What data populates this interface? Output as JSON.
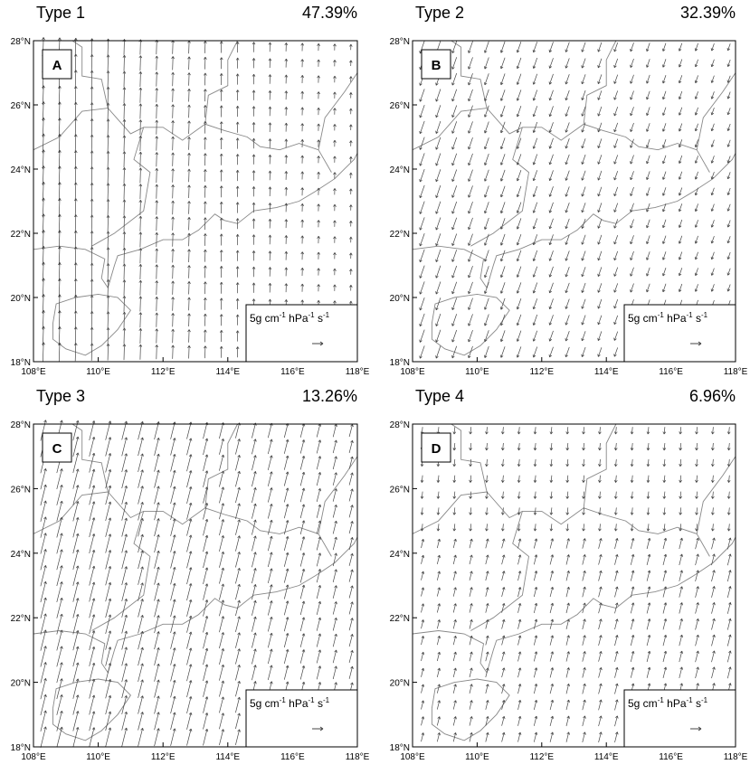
{
  "panels": [
    {
      "title": "Type 1",
      "percent": "47.39%",
      "letter": "A"
    },
    {
      "title": "Type 2",
      "percent": "32.39%",
      "letter": "B"
    },
    {
      "title": "Type 3",
      "percent": "13.26%",
      "letter": "C"
    },
    {
      "title": "Type 4",
      "percent": "6.96%",
      "letter": "D"
    }
  ],
  "xticks": [
    "108°E",
    "110°E",
    "112°E",
    "114°E",
    "116°E",
    "118°E"
  ],
  "yticks": [
    "18°N",
    "20°N",
    "22°N",
    "24°N",
    "26°N",
    "28°N"
  ],
  "legend_units": [
    "5g cm",
    "-1",
    " hPa",
    "-1",
    " s",
    "-1"
  ]
}
